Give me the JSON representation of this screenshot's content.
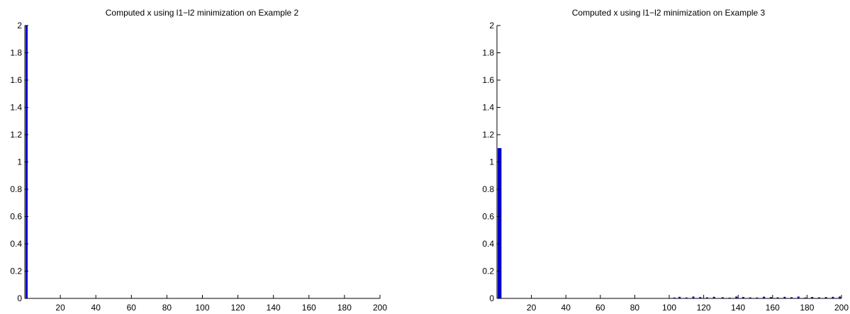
{
  "chart_data": [
    {
      "type": "bar",
      "title": "Computed x using l1−l2 minimization on Example 2",
      "xlabel": "",
      "ylabel": "",
      "xlim": [
        0,
        200
      ],
      "ylim": [
        0,
        2
      ],
      "xticks": [
        20,
        40,
        60,
        80,
        100,
        120,
        140,
        160,
        180,
        200
      ],
      "yticks": [
        0,
        0.2,
        0.4,
        0.6,
        0.8,
        1,
        1.2,
        1.4,
        1.6,
        1.8,
        2
      ],
      "yticklabels": [
        "0",
        "0.2",
        "0.4",
        "0.6",
        "0.8",
        "1",
        "1.2",
        "1.4",
        "1.6",
        "1.8",
        "2"
      ],
      "grid": false,
      "bar_color": "#0000cc",
      "x": [
        1
      ],
      "values": [
        2.0
      ]
    },
    {
      "type": "bar",
      "title": "Computed x using l1−l2 minimization on Example 3",
      "xlabel": "",
      "ylabel": "",
      "xlim": [
        0,
        200
      ],
      "ylim": [
        0,
        2
      ],
      "xticks": [
        20,
        40,
        60,
        80,
        100,
        120,
        140,
        160,
        180,
        200
      ],
      "yticks": [
        0,
        0.2,
        0.4,
        0.6,
        0.8,
        1,
        1.2,
        1.4,
        1.6,
        1.8,
        2
      ],
      "yticklabels": [
        "0",
        "0.2",
        "0.4",
        "0.6",
        "0.8",
        "1",
        "1.2",
        "1.4",
        "1.6",
        "1.8",
        "2"
      ],
      "grid": false,
      "bar_color": "#0000cc",
      "x": [
        1,
        2,
        103,
        106,
        110,
        114,
        118,
        122,
        126,
        131,
        135,
        139,
        143,
        147,
        151,
        155,
        159,
        163,
        167,
        171,
        175,
        179,
        183,
        187,
        191,
        195,
        199
      ],
      "values": [
        1.1,
        1.1,
        0.005,
        0.01,
        0.005,
        0.012,
        0.008,
        0.006,
        0.01,
        0.007,
        0.004,
        0.012,
        0.009,
        0.006,
        0.005,
        0.011,
        0.008,
        0.006,
        0.01,
        0.007,
        0.012,
        0.005,
        0.009,
        0.006,
        0.008,
        0.01,
        0.012
      ]
    }
  ]
}
